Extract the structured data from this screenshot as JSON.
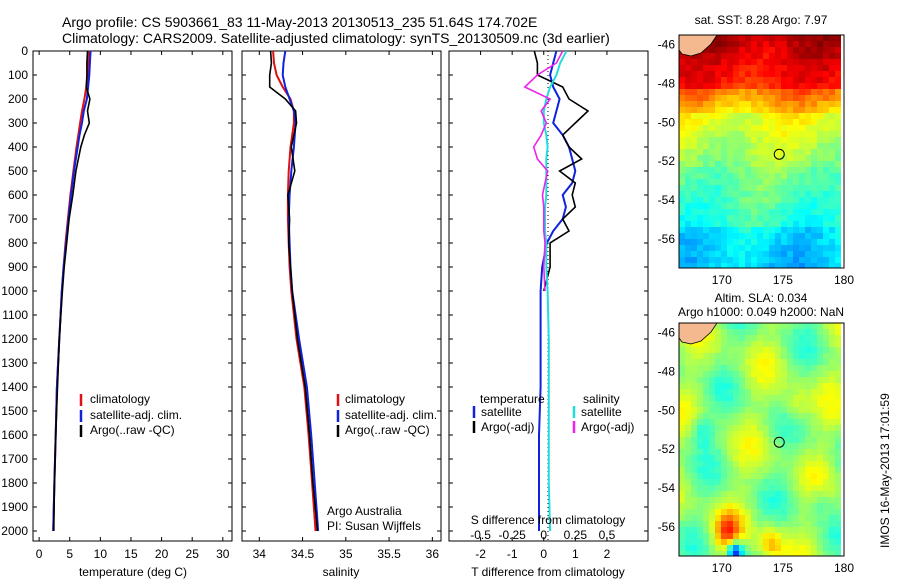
{
  "header": {
    "line1": "Argo profile: CS 5903661_83 11-May-2013 20130513_235 51.64S 174.702E",
    "line2": "Climatology: CARS2009. Satellite-adjusted climatology: synTS_20130509.nc (3d earlier)"
  },
  "colors": {
    "climatology": "#dd1111",
    "satellite": "#1122dd",
    "argo": "#000000",
    "sal_satellite": "#22dddd",
    "sal_argo": "#ee22ee"
  },
  "depth_ticks": [
    "0",
    "100",
    "200",
    "300",
    "400",
    "500",
    "600",
    "700",
    "800",
    "900",
    "1000",
    "1100",
    "1200",
    "1300",
    "1400",
    "1500",
    "1600",
    "1700",
    "1800",
    "1900",
    "2000"
  ],
  "chart_data": [
    {
      "type": "line",
      "name": "temperature-profile",
      "xlabel": "temperature (deg C)",
      "ylabel": "",
      "xlim": [
        -1,
        31.5
      ],
      "ylim": [
        2000,
        0
      ],
      "x_ticks": [
        "0",
        "5",
        "10",
        "15",
        "20",
        "25",
        "30"
      ],
      "legend": [
        "climatology",
        "satellite-adj. clim.",
        "Argo(..raw -QC)"
      ],
      "legend_position": "bottom-right",
      "depth": [
        0,
        50,
        100,
        150,
        200,
        250,
        300,
        350,
        400,
        500,
        600,
        700,
        800,
        900,
        1000,
        1200,
        1400,
        1600,
        1800,
        2000
      ],
      "series": [
        {
          "name": "climatology",
          "values": [
            8.1,
            8.0,
            7.9,
            7.7,
            7.4,
            7.0,
            6.7,
            6.4,
            6.1,
            5.6,
            5.1,
            4.7,
            4.3,
            4.0,
            3.7,
            3.3,
            2.9,
            2.7,
            2.5,
            2.3
          ]
        },
        {
          "name": "satellite-adj. clim.",
          "values": [
            8.4,
            8.3,
            8.2,
            8.0,
            7.8,
            7.3,
            7.0,
            6.6,
            6.3,
            5.7,
            5.2,
            4.8,
            4.4,
            4.0,
            3.7,
            3.3,
            2.9,
            2.7,
            2.5,
            2.3
          ]
        },
        {
          "name": "Argo(..raw -QC)",
          "values": [
            7.9,
            7.8,
            7.8,
            7.7,
            8.3,
            7.9,
            8.2,
            7.4,
            6.8,
            6.0,
            5.5,
            4.9,
            4.5,
            4.1,
            3.8,
            3.3,
            3.0,
            2.7,
            2.5,
            2.4
          ]
        }
      ]
    },
    {
      "type": "line",
      "name": "salinity-profile",
      "xlabel": "salinity",
      "ylabel": "",
      "xlim": [
        33.8,
        36.1
      ],
      "ylim": [
        2000,
        0
      ],
      "x_ticks": [
        "34",
        "34.5",
        "35",
        "35.5",
        "36"
      ],
      "legend": [
        "climatology",
        "satellite-adj. clim.",
        "Argo(..raw -QC)"
      ],
      "legend_position": "middle-right",
      "annotations": [
        "Argo Australia",
        "PI: Susan Wijffels"
      ],
      "depth": [
        0,
        50,
        100,
        150,
        200,
        250,
        300,
        400,
        500,
        600,
        700,
        800,
        900,
        1000,
        1200,
        1400,
        1600,
        1800,
        1950,
        2000
      ],
      "series": [
        {
          "name": "climatology",
          "values": [
            34.16,
            34.17,
            34.2,
            34.27,
            34.36,
            34.4,
            34.4,
            34.36,
            34.34,
            34.33,
            34.33,
            34.34,
            34.35,
            34.37,
            34.43,
            34.52,
            34.57,
            34.61,
            34.64,
            34.65
          ]
        },
        {
          "name": "satellite-adj. clim.",
          "values": [
            34.3,
            34.28,
            34.27,
            34.3,
            34.35,
            34.4,
            34.42,
            34.4,
            34.37,
            34.35,
            34.34,
            34.35,
            34.36,
            34.38,
            34.46,
            34.55,
            34.6,
            34.64,
            34.67,
            34.68
          ]
        },
        {
          "name": "Argo(..raw -QC)",
          "values": [
            34.13,
            34.14,
            34.12,
            34.12,
            34.3,
            34.42,
            34.43,
            34.37,
            34.41,
            34.33,
            34.35,
            34.34,
            34.36,
            34.38,
            34.44,
            34.53,
            34.58,
            34.62,
            34.66,
            34.67
          ]
        }
      ]
    },
    {
      "type": "line",
      "name": "difference-profile",
      "xlabel": "T difference from climatology",
      "x_ticks": [
        "-2",
        "-1",
        "0",
        "1",
        "2"
      ],
      "xlim": [
        -3,
        3.3
      ],
      "secondary_xlabel": "S difference from climatology",
      "secondary_x_ticks": [
        "-0.5",
        "-0.25",
        "0",
        "0.25",
        "0.5"
      ],
      "secondary_xlim": [
        -0.75,
        0.825
      ],
      "ylim": [
        2000,
        0
      ],
      "legend_headers": [
        "temperature",
        "salinity"
      ],
      "legend": [
        "satellite",
        "Argo(-adj)",
        "satellite",
        "Argo(-adj)"
      ],
      "legend_position": "bottom",
      "depth": [
        0,
        50,
        100,
        150,
        200,
        250,
        300,
        350,
        400,
        450,
        500,
        550,
        600,
        650,
        700,
        750,
        800,
        900,
        1000,
        1200,
        1400,
        1600,
        1800,
        2000
      ],
      "series": [
        {
          "name": "T satellite",
          "values": [
            0.4,
            0.3,
            0.2,
            0.3,
            0.5,
            0.4,
            0.3,
            0.6,
            0.8,
            0.9,
            1.0,
            0.9,
            0.6,
            0.7,
            0.6,
            0.3,
            0.1,
            -0.05,
            -0.1,
            -0.1,
            -0.1,
            -0.15,
            -0.15,
            -0.15
          ]
        },
        {
          "name": "T Argo(-adj)",
          "values": [
            -0.3,
            -0.2,
            -0.2,
            0.6,
            0.8,
            1.4,
            1.0,
            0.6,
            0.8,
            1.2,
            0.5,
            1.0,
            0.9,
            1.0,
            0.6,
            0.8,
            0.2,
            0.2,
            0.0,
            null,
            null,
            null,
            null,
            null
          ]
        },
        {
          "name": "S satellite",
          "values": [
            0.18,
            0.13,
            0.1,
            0.05,
            0.02,
            0.0,
            0.0,
            0.02,
            0.03,
            0.02,
            0.02,
            0.02,
            0.02,
            0.01,
            0.01,
            0.01,
            0.02,
            0.02,
            0.03,
            0.04,
            0.04,
            0.04,
            0.04,
            0.05
          ]
        },
        {
          "name": "S Argo(-adj)",
          "values": [
            0.15,
            0.1,
            -0.05,
            -0.15,
            0.05,
            -0.02,
            0.02,
            -0.02,
            -0.08,
            -0.05,
            0.03,
            0.01,
            -0.01,
            0.0,
            0.0,
            0.0,
            0.01,
            0.0,
            0.01,
            null,
            null,
            null,
            null,
            null
          ]
        }
      ]
    },
    {
      "type": "heatmap",
      "name": "sst-map",
      "title": "sat. SST: 8.28  Argo: 7.97",
      "x_ticks": [
        "170",
        "175",
        "180"
      ],
      "y_ticks": [
        "-46",
        "-48",
        "-50",
        "-52",
        "-54",
        "-56"
      ],
      "xlim": [
        166.5,
        180
      ],
      "ylim": [
        -57.5,
        -45.5
      ],
      "marker": {
        "lon": 174.702,
        "lat": -51.64
      }
    },
    {
      "type": "heatmap",
      "name": "sla-map",
      "title": "Altim. SLA: 0.034",
      "subtitle": "Argo h1000: 0.049 h2000: NaN",
      "x_ticks": [
        "170",
        "175",
        "180"
      ],
      "y_ticks": [
        "-46",
        "-48",
        "-50",
        "-52",
        "-54",
        "-56"
      ],
      "xlim": [
        166.5,
        180
      ],
      "ylim": [
        -57.5,
        -45.5
      ],
      "marker": {
        "lon": 174.702,
        "lat": -51.64
      },
      "side_label": "IMOS 16-May-2013 17:01:59"
    }
  ]
}
